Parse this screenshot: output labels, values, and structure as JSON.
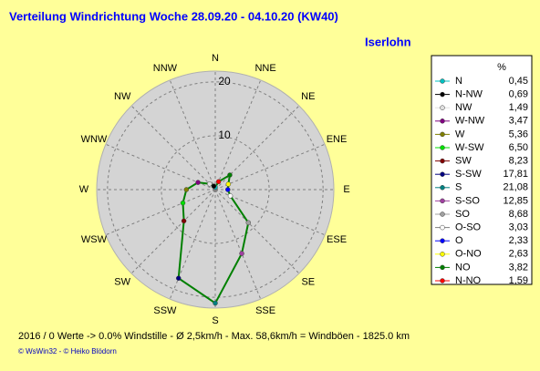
{
  "chart_data": {
    "type": "radar",
    "title": "Verteilung Windrichtung   Woche 28.09.20 - 04.10.20 (KW40)",
    "subtitle": "Iserlohn",
    "directions": [
      "N",
      "NNE",
      "NE",
      "ENE",
      "E",
      "ESE",
      "SE",
      "SSE",
      "S",
      "SSW",
      "SW",
      "WSW",
      "W",
      "WNW",
      "NW",
      "NNW"
    ],
    "rlim": [
      0,
      22
    ],
    "rticks": [
      10,
      20
    ],
    "line_color": "#008000",
    "legend_header": "%",
    "legend": {
      "names": [
        "N",
        "N-NW",
        "NW",
        "W-NW",
        "W",
        "W-SW",
        "SW",
        "S-SW",
        "S",
        "S-SO",
        "SO",
        "O-SO",
        "O",
        "O-NO",
        "NO",
        "N-NO"
      ],
      "values": [
        0.45,
        0.69,
        1.49,
        3.47,
        5.36,
        6.5,
        8.23,
        17.81,
        21.08,
        12.85,
        8.68,
        3.03,
        2.33,
        2.63,
        3.82,
        1.59
      ],
      "value_labels": [
        "0,45",
        "0,69",
        "1,49",
        "3,47",
        "5,36",
        "6,50",
        "8,23",
        "17,81",
        "21,08",
        "12,85",
        "8,68",
        "3,03",
        "2,33",
        "2,63",
        "3,82",
        "1,59"
      ],
      "colors": [
        "#00c0c0",
        "#000000",
        "#e0e0e0",
        "#800080",
        "#808000",
        "#00e000",
        "#800000",
        "#000080",
        "#008080",
        "#a040a0",
        "#a0a0a0",
        "#ffffff",
        "#0000ff",
        "#ffff00",
        "#008000",
        "#ff0000"
      ]
    },
    "footer": "2016 / 0 Werte  -> 0.0% Windstille   -   Ø 2,5km/h   -   Max. 58,6km/h = Windböen   -   1825.0 km",
    "credit": "© WsWin32  -  © Heiko Blödorn"
  }
}
